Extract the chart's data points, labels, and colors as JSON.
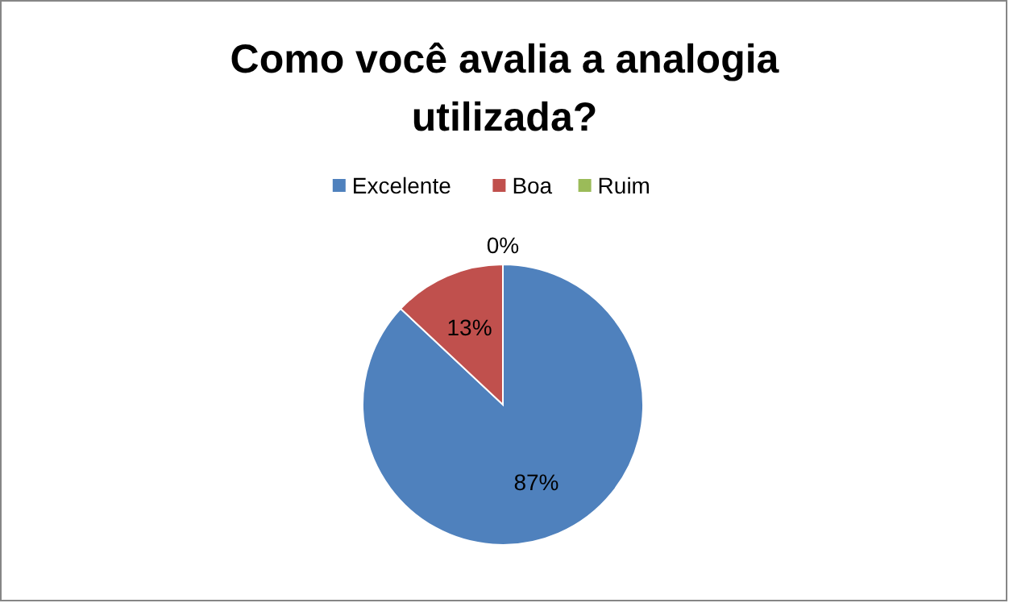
{
  "chart_data": {
    "type": "pie",
    "title": "Como você avalia a analogia utilizada?",
    "categories": [
      "Excelente",
      "Boa",
      "Ruim"
    ],
    "values": [
      87,
      13,
      0
    ],
    "colors": [
      "#4f81bd",
      "#c0504d",
      "#9bbb59"
    ],
    "value_labels": [
      "87%",
      "13%",
      "0%"
    ],
    "legend": "top"
  }
}
